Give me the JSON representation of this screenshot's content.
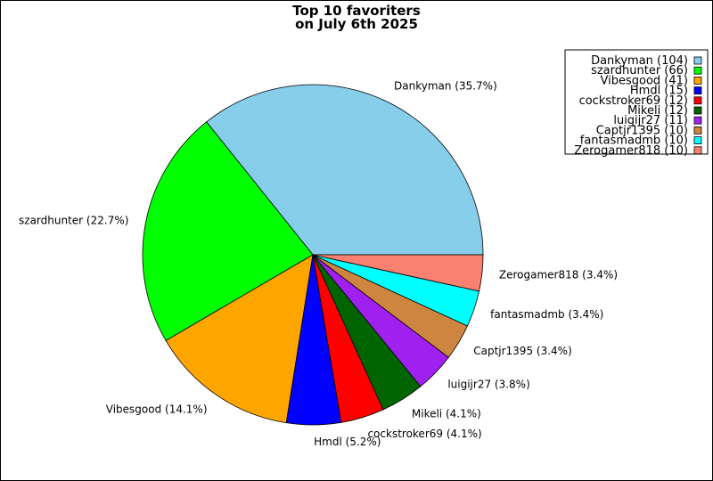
{
  "chart_data": {
    "type": "pie",
    "title": [
      "Top 10 favoriters",
      "on July 6th 2025"
    ],
    "start_angle_deg": 0,
    "direction": "counterclockwise",
    "legend_position": "top-right",
    "slices": [
      {
        "name": "Dankyman",
        "value": 104,
        "label": "Dankyman (35.7%)",
        "legend": "Dankyman (104)",
        "color": "#87ceeb"
      },
      {
        "name": "szardhunter",
        "value": 66,
        "label": "szardhunter (22.7%)",
        "legend": "szardhunter (66)",
        "color": "#00ff00"
      },
      {
        "name": "Vibesgood",
        "value": 41,
        "label": "Vibesgood (14.1%)",
        "legend": "Vibesgood (41)",
        "color": "#ffa500"
      },
      {
        "name": "Hmdl",
        "value": 15,
        "label": "Hmdl (5.2%)",
        "legend": "Hmdl (15)",
        "color": "#0000ff"
      },
      {
        "name": "cockstroker69",
        "value": 12,
        "label": "cockstroker69 (4.1%)",
        "legend": "cockstroker69 (12)",
        "color": "#ff0000"
      },
      {
        "name": "Mikeli",
        "value": 12,
        "label": "Mikeli (4.1%)",
        "legend": "Mikeli (12)",
        "color": "#006400"
      },
      {
        "name": "luigijr27",
        "value": 11,
        "label": "luigijr27 (3.8%)",
        "legend": "luigijr27 (11)",
        "color": "#a020f0"
      },
      {
        "name": "Captjr1395",
        "value": 10,
        "label": "Captjr1395 (3.4%)",
        "legend": "Captjr1395 (10)",
        "color": "#cd853f"
      },
      {
        "name": "fantasmadmb",
        "value": 10,
        "label": "fantasmadmb (3.4%)",
        "legend": "fantasmadmb (10)",
        "color": "#00ffff"
      },
      {
        "name": "Zerogamer818",
        "value": 10,
        "label": "Zerogamer818 (3.4%)",
        "legend": "Zerogamer818 (10)",
        "color": "#fa8072"
      }
    ]
  }
}
